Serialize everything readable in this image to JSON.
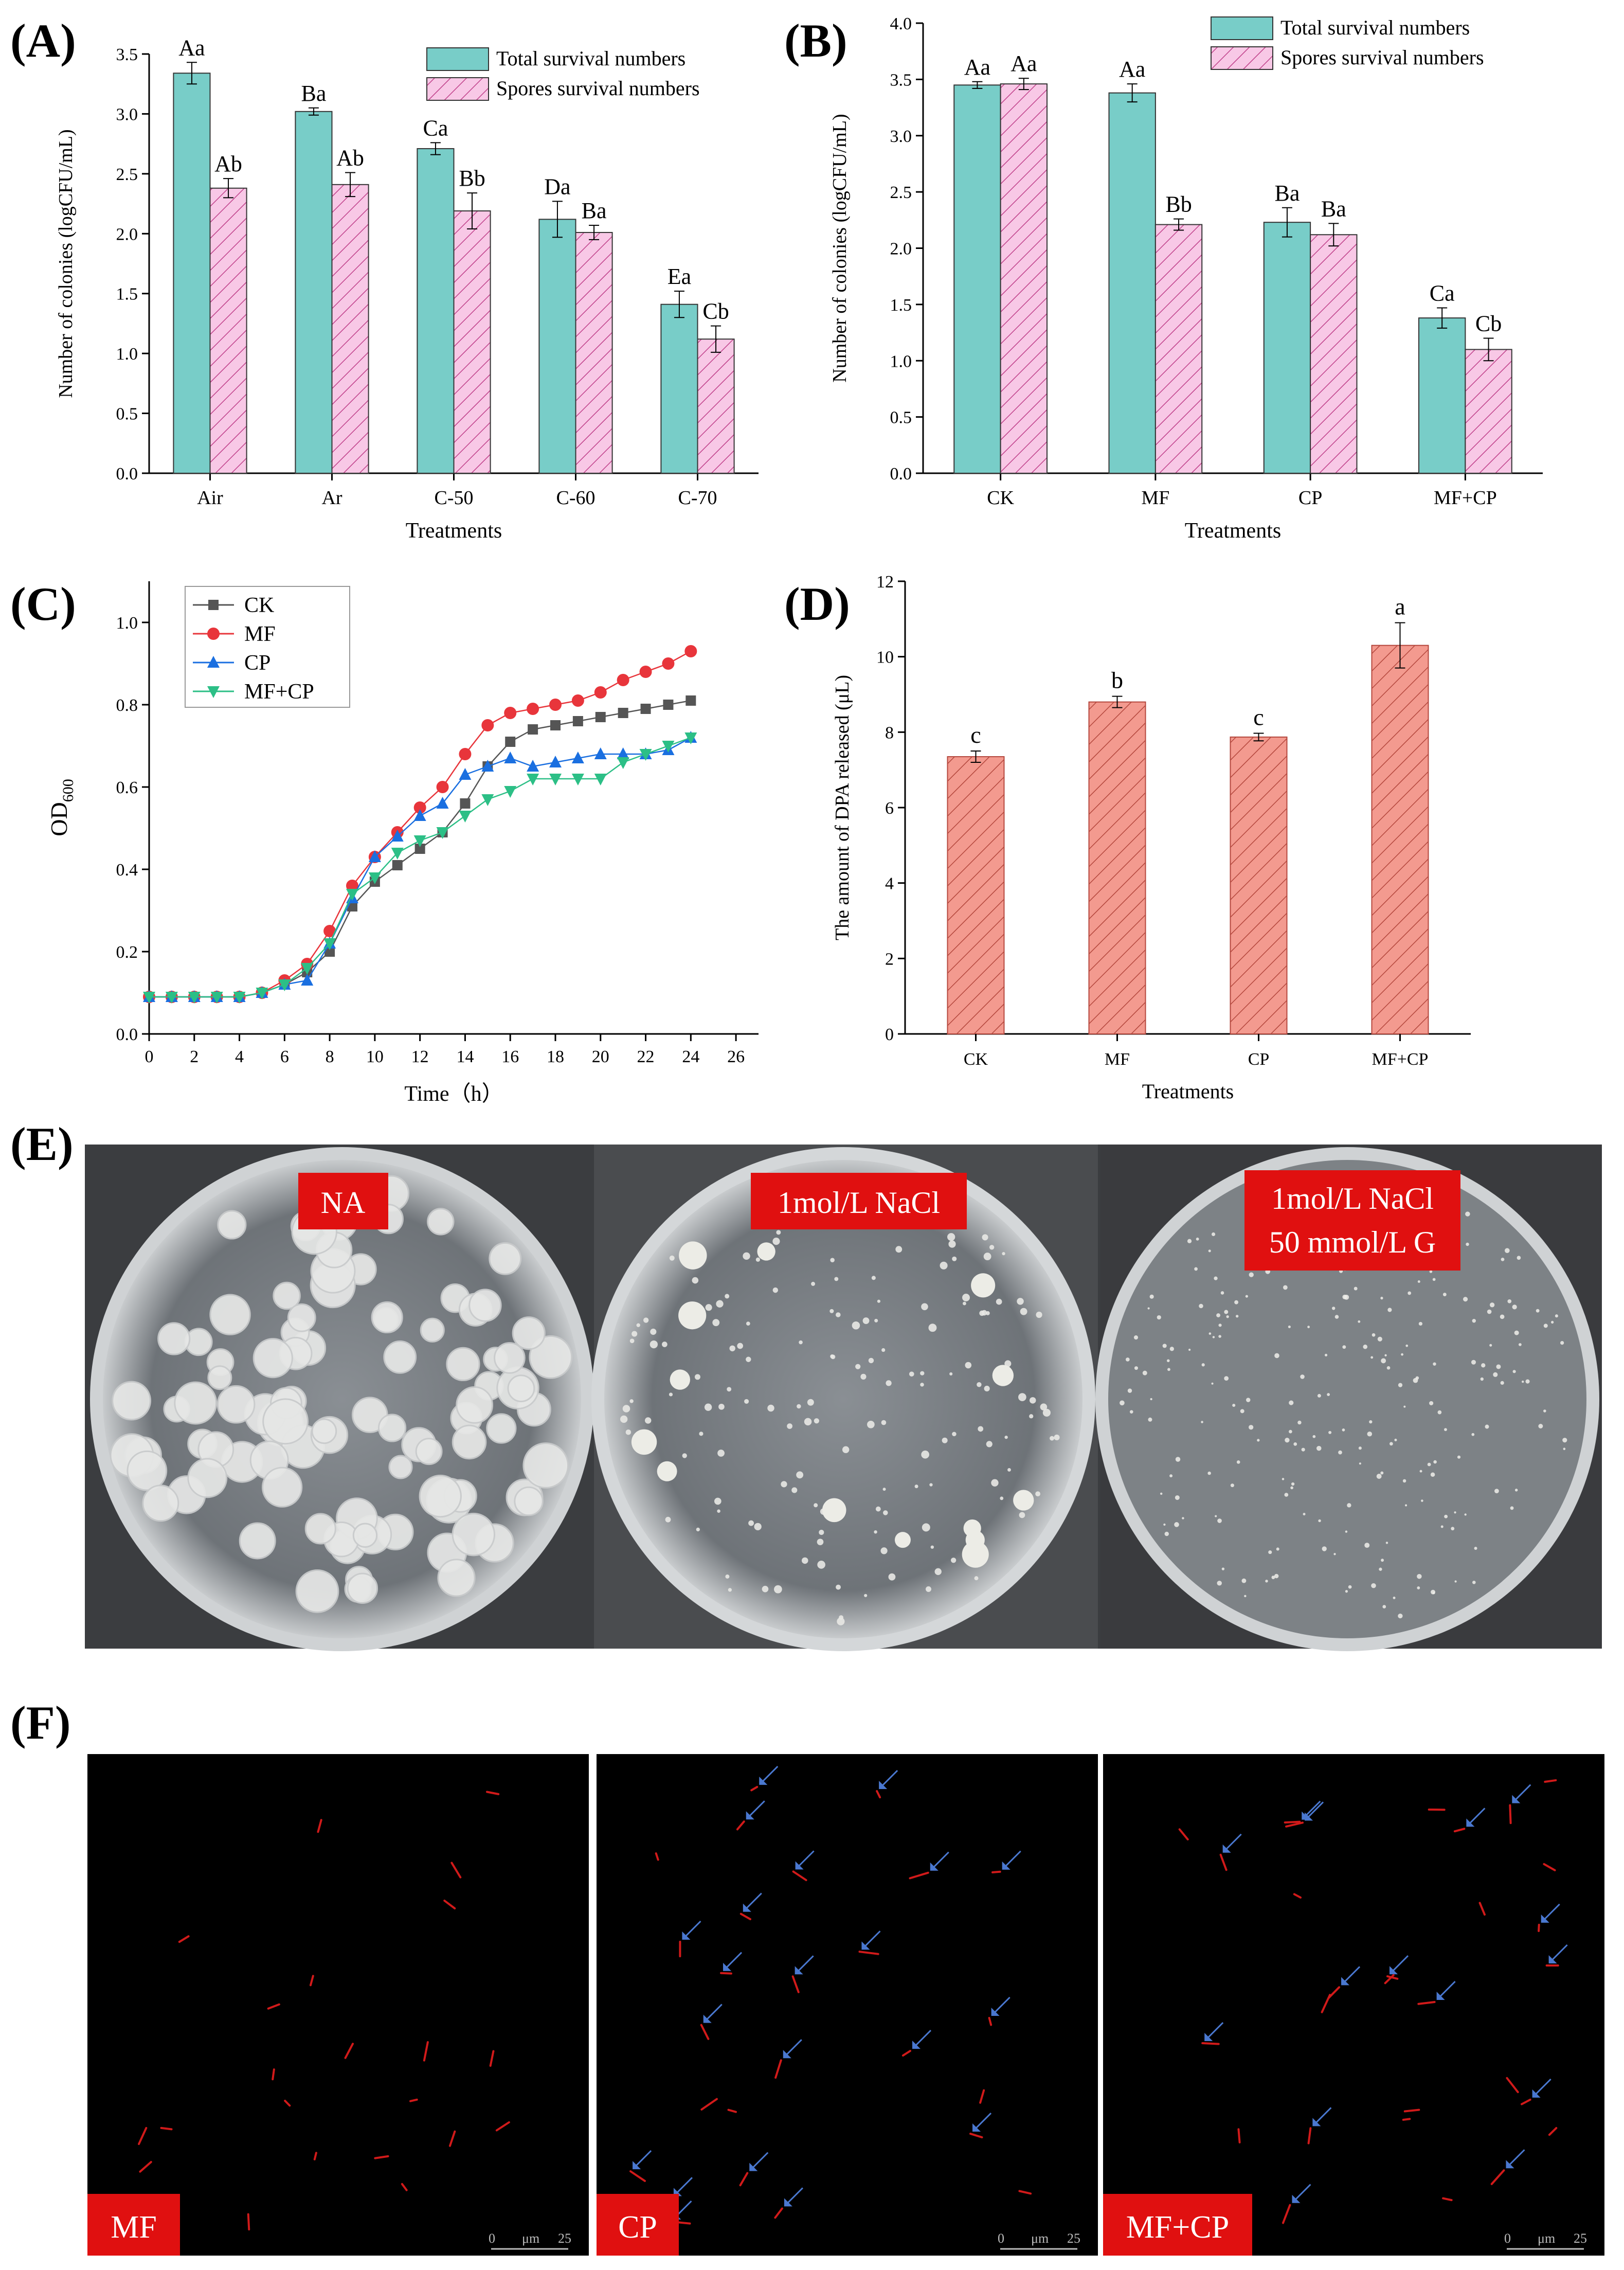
{
  "panel_labels": [
    "(A)",
    "(B)",
    "(C)",
    "(D)",
    "(E)",
    "(F)"
  ],
  "colors": {
    "teal": "#78cdc8",
    "pink_fill": "#f8c8e6",
    "pink_hatch": "#c0408a",
    "salmon": "#f39a8f",
    "ck": "#555555",
    "mf": "#e8353b",
    "cp": "#1a6fe0",
    "mfcp": "#2cbf86",
    "label_red": "#e01010",
    "arrow_blue": "#4a78d0"
  },
  "chart_data": [
    {
      "id": "A",
      "type": "bar",
      "categories": [
        "Air",
        "Ar",
        "C-50",
        "C-60",
        "C-70"
      ],
      "series": [
        {
          "name": "Total survival numbers",
          "values": [
            3.34,
            3.02,
            2.71,
            2.12,
            1.41
          ],
          "errors": [
            0.09,
            0.03,
            0.05,
            0.15,
            0.11
          ],
          "labels": [
            "Aa",
            "Ba",
            "Ca",
            "Da",
            "Ea"
          ]
        },
        {
          "name": "Spores survival numbers",
          "values": [
            2.38,
            2.41,
            2.19,
            2.01,
            1.12
          ],
          "errors": [
            0.08,
            0.1,
            0.15,
            0.06,
            0.11
          ],
          "labels": [
            "Ab",
            "Ab",
            "Bb",
            "Ba",
            "Cb"
          ]
        }
      ],
      "xlabel": "Treatments",
      "ylabel": "Number of colonies (logCFU/mL)",
      "ylim": [
        0,
        3.5
      ],
      "yticks": [
        "0.0",
        "0.5",
        "1.0",
        "1.5",
        "2.0",
        "2.5",
        "3.0",
        "3.5"
      ],
      "legend": "top-right",
      "grid": false
    },
    {
      "id": "B",
      "type": "bar",
      "categories": [
        "CK",
        "MF",
        "CP",
        "MF+CP"
      ],
      "series": [
        {
          "name": "Total survival numbers",
          "values": [
            3.45,
            3.38,
            2.23,
            1.38
          ],
          "errors": [
            0.03,
            0.08,
            0.13,
            0.09
          ],
          "labels": [
            "Aa",
            "Aa",
            "Ba",
            "Ca"
          ]
        },
        {
          "name": "Spores survival numbers",
          "values": [
            3.46,
            2.21,
            2.12,
            1.1
          ],
          "errors": [
            0.05,
            0.05,
            0.1,
            0.1
          ],
          "labels": [
            "Aa",
            "Bb",
            "Ba",
            "Cb"
          ]
        }
      ],
      "xlabel": "Treatments",
      "ylabel": "Number of colonies (logCFU/mL)",
      "ylim": [
        0,
        4
      ],
      "yticks": [
        "0.0",
        "0.5",
        "1.0",
        "1.5",
        "2.0",
        "2.5",
        "3.0",
        "3.5",
        "4.0"
      ],
      "legend": "top-right",
      "grid": false
    },
    {
      "id": "C",
      "type": "line",
      "x": [
        0,
        1,
        2,
        3,
        4,
        5,
        6,
        7,
        8,
        9,
        10,
        11,
        12,
        13,
        14,
        15,
        16,
        17,
        18,
        19,
        20,
        21,
        22,
        23,
        24
      ],
      "series": [
        {
          "name": "CK",
          "marker": "square",
          "values": [
            0.09,
            0.09,
            0.09,
            0.09,
            0.09,
            0.1,
            0.12,
            0.15,
            0.2,
            0.31,
            0.37,
            0.41,
            0.45,
            0.49,
            0.56,
            0.65,
            0.71,
            0.74,
            0.75,
            0.76,
            0.77,
            0.78,
            0.79,
            0.8,
            0.81
          ]
        },
        {
          "name": "MF",
          "marker": "circle",
          "values": [
            0.09,
            0.09,
            0.09,
            0.09,
            0.09,
            0.1,
            0.13,
            0.17,
            0.25,
            0.36,
            0.43,
            0.49,
            0.55,
            0.6,
            0.68,
            0.75,
            0.78,
            0.79,
            0.8,
            0.81,
            0.83,
            0.86,
            0.88,
            0.9,
            0.93
          ]
        },
        {
          "name": "CP",
          "marker": "triangle-up",
          "values": [
            0.09,
            0.09,
            0.09,
            0.09,
            0.09,
            0.1,
            0.12,
            0.13,
            0.22,
            0.33,
            0.43,
            0.48,
            0.53,
            0.56,
            0.63,
            0.65,
            0.67,
            0.65,
            0.66,
            0.67,
            0.68,
            0.68,
            0.68,
            0.69,
            0.72
          ]
        },
        {
          "name": "MF+CP",
          "marker": "triangle-down",
          "values": [
            0.09,
            0.09,
            0.09,
            0.09,
            0.09,
            0.1,
            0.12,
            0.16,
            0.22,
            0.34,
            0.38,
            0.44,
            0.47,
            0.49,
            0.53,
            0.57,
            0.59,
            0.62,
            0.62,
            0.62,
            0.62,
            0.66,
            0.68,
            0.7,
            0.72
          ]
        }
      ],
      "xlabel": "Time（h）",
      "ylabel_main": "OD",
      "ylabel_sub": "600",
      "xlim": [
        0,
        27
      ],
      "ylim": [
        0,
        1.1
      ],
      "xticks": [
        0,
        2,
        4,
        6,
        8,
        10,
        12,
        14,
        16,
        18,
        20,
        22,
        24,
        26
      ],
      "yticks": [
        "0.0",
        "0.2",
        "0.4",
        "0.6",
        "0.8",
        "1.0"
      ],
      "legend": "top-left",
      "grid": false
    },
    {
      "id": "D",
      "type": "bar",
      "categories": [
        "CK",
        "MF",
        "CP",
        "MF+CP"
      ],
      "values": [
        7.35,
        8.8,
        7.87,
        10.3
      ],
      "errors": [
        0.15,
        0.15,
        0.1,
        0.6
      ],
      "labels": [
        "c",
        "b",
        "c",
        "a"
      ],
      "xlabel": "Treatments",
      "ylabel": "The amount of DPA released (μL)",
      "ylim": [
        0,
        12
      ],
      "yticks": [
        "0",
        "2",
        "4",
        "6",
        "8",
        "10",
        "12"
      ],
      "grid": false
    }
  ],
  "photos_E": {
    "labels": [
      [
        "NA"
      ],
      [
        "1mol/L NaCl"
      ],
      [
        "1mol/L NaCl",
        "50 mmol/L G"
      ]
    ]
  },
  "photos_F": {
    "labels": [
      "MF",
      "CP",
      "MF+CP"
    ],
    "scale_bar": {
      "zero": "0",
      "unit": "μm",
      "value": "25"
    }
  }
}
